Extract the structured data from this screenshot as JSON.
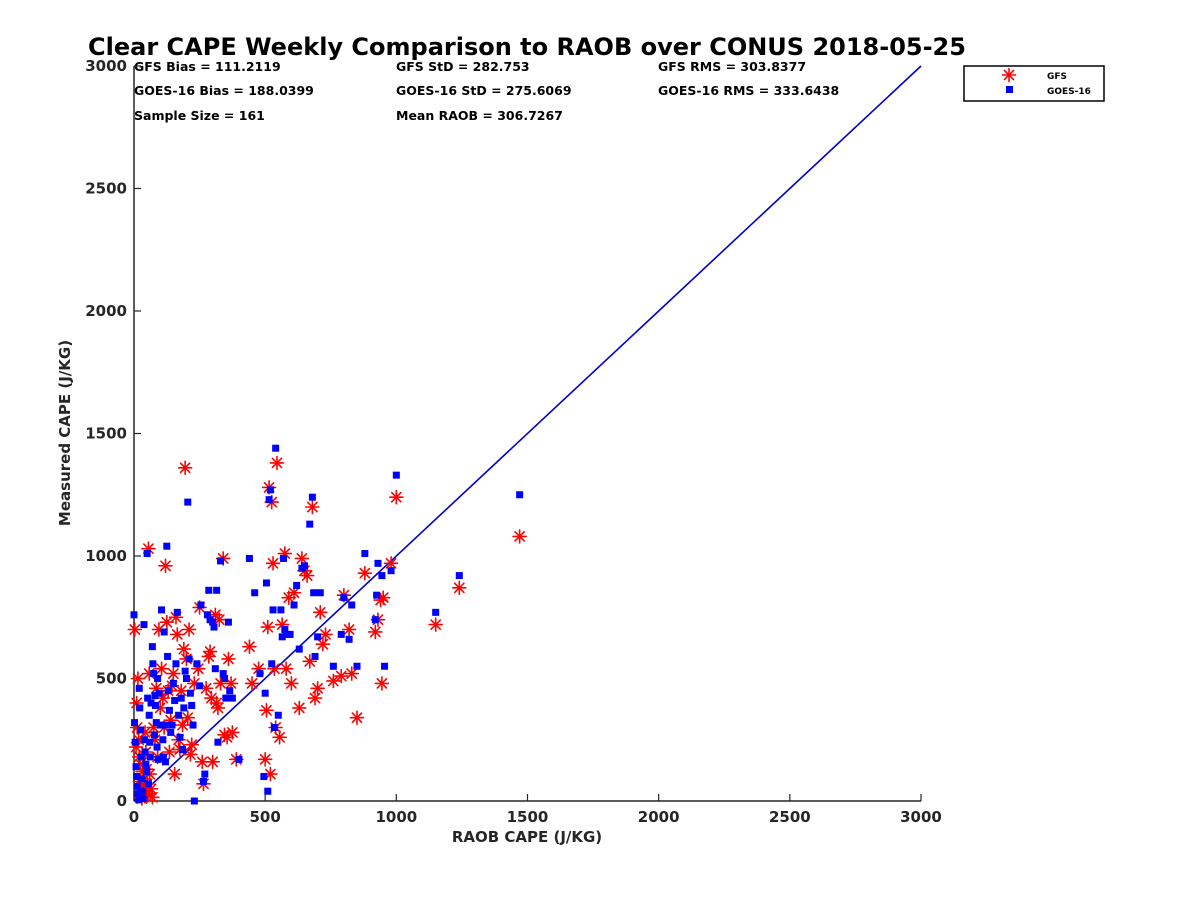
{
  "chart_data": {
    "type": "scatter",
    "title": "Clear CAPE Weekly Comparison to RAOB over CONUS 2018-05-25",
    "xlabel": "RAOB CAPE (J/KG)",
    "ylabel": "Measured CAPE (J/KG)",
    "xlim": [
      0,
      3000
    ],
    "ylim": [
      0,
      3000
    ],
    "xticks": [
      "0",
      "500",
      "1000",
      "1500",
      "2000",
      "2500",
      "3000"
    ],
    "yticks": [
      "0",
      "500",
      "1000",
      "1500",
      "2000",
      "2500",
      "3000"
    ],
    "grid": false,
    "legend_position": "top-right",
    "stats": {
      "gfs_bias": "GFS Bias = 111.2119",
      "gfs_std": "GFS StD = 282.753",
      "gfs_rms": "GFS RMS = 303.8377",
      "goes_bias": "GOES-16 Bias = 188.0399",
      "goes_std": "GOES-16 StD = 275.6069",
      "goes_rms": "GOES-16 RMS = 333.6438",
      "sample_size": "Sample Size = 161",
      "mean_raob": "Mean RAOB = 306.7267"
    },
    "reference_line": {
      "x": [
        0,
        3000
      ],
      "y": [
        0,
        3000
      ],
      "color": "#0000cc"
    },
    "series": [
      {
        "name": "GFS",
        "marker": "asterisk",
        "color": "#ff0000",
        "points": [
          [
            3,
            700
          ],
          [
            8,
            220
          ],
          [
            10,
            400
          ],
          [
            12,
            300
          ],
          [
            15,
            500
          ],
          [
            18,
            250
          ],
          [
            20,
            180
          ],
          [
            22,
            80
          ],
          [
            25,
            150
          ],
          [
            28,
            60
          ],
          [
            30,
            10
          ],
          [
            33,
            120
          ],
          [
            35,
            40
          ],
          [
            38,
            90
          ],
          [
            40,
            20
          ],
          [
            42,
            280
          ],
          [
            45,
            200
          ],
          [
            48,
            130
          ],
          [
            50,
            70
          ],
          [
            52,
            30
          ],
          [
            55,
            1030
          ],
          [
            58,
            520
          ],
          [
            60,
            110
          ],
          [
            65,
            50
          ],
          [
            70,
            15
          ],
          [
            75,
            300
          ],
          [
            80,
            250
          ],
          [
            85,
            460
          ],
          [
            90,
            180
          ],
          [
            95,
            700
          ],
          [
            100,
            380
          ],
          [
            105,
            540
          ],
          [
            110,
            420
          ],
          [
            115,
            300
          ],
          [
            120,
            960
          ],
          [
            125,
            730
          ],
          [
            130,
            450
          ],
          [
            135,
            200
          ],
          [
            140,
            330
          ],
          [
            145,
            470
          ],
          [
            150,
            520
          ],
          [
            155,
            110
          ],
          [
            160,
            750
          ],
          [
            165,
            680
          ],
          [
            170,
            250
          ],
          [
            175,
            210
          ],
          [
            180,
            450
          ],
          [
            185,
            310
          ],
          [
            190,
            620
          ],
          [
            195,
            1360
          ],
          [
            200,
            580
          ],
          [
            205,
            340
          ],
          [
            210,
            700
          ],
          [
            215,
            190
          ],
          [
            220,
            230
          ],
          [
            230,
            480
          ],
          [
            245,
            540
          ],
          [
            250,
            790
          ],
          [
            260,
            160
          ],
          [
            265,
            70
          ],
          [
            275,
            460
          ],
          [
            285,
            590
          ],
          [
            290,
            610
          ],
          [
            295,
            420
          ],
          [
            300,
            160
          ],
          [
            310,
            760
          ],
          [
            315,
            400
          ],
          [
            320,
            380
          ],
          [
            325,
            740
          ],
          [
            330,
            480
          ],
          [
            340,
            990
          ],
          [
            345,
            270
          ],
          [
            355,
            260
          ],
          [
            360,
            580
          ],
          [
            370,
            480
          ],
          [
            375,
            280
          ],
          [
            390,
            170
          ],
          [
            440,
            630
          ],
          [
            450,
            480
          ],
          [
            475,
            540
          ],
          [
            500,
            170
          ],
          [
            505,
            370
          ],
          [
            510,
            710
          ],
          [
            515,
            1280
          ],
          [
            520,
            110
          ],
          [
            525,
            1220
          ],
          [
            530,
            970
          ],
          [
            535,
            540
          ],
          [
            540,
            300
          ],
          [
            545,
            1380
          ],
          [
            555,
            260
          ],
          [
            565,
            720
          ],
          [
            575,
            1010
          ],
          [
            580,
            540
          ],
          [
            590,
            830
          ],
          [
            600,
            480
          ],
          [
            610,
            850
          ],
          [
            630,
            380
          ],
          [
            640,
            990
          ],
          [
            650,
            940
          ],
          [
            660,
            920
          ],
          [
            670,
            570
          ],
          [
            680,
            1200
          ],
          [
            690,
            420
          ],
          [
            700,
            460
          ],
          [
            710,
            770
          ],
          [
            720,
            640
          ],
          [
            730,
            680
          ],
          [
            760,
            490
          ],
          [
            790,
            510
          ],
          [
            800,
            840
          ],
          [
            820,
            700
          ],
          [
            830,
            520
          ],
          [
            850,
            340
          ],
          [
            880,
            930
          ],
          [
            920,
            690
          ],
          [
            930,
            740
          ],
          [
            940,
            820
          ],
          [
            945,
            480
          ],
          [
            950,
            830
          ],
          [
            980,
            970
          ],
          [
            1000,
            1240
          ],
          [
            1150,
            720
          ],
          [
            1240,
            870
          ],
          [
            1470,
            1080
          ]
        ]
      },
      {
        "name": "GOES-16",
        "marker": "square",
        "color": "#0000ff",
        "points": [
          [
            0,
            760
          ],
          [
            2,
            320
          ],
          [
            5,
            240
          ],
          [
            8,
            140
          ],
          [
            10,
            100
          ],
          [
            12,
            60
          ],
          [
            15,
            30
          ],
          [
            18,
            5
          ],
          [
            20,
            460
          ],
          [
            22,
            380
          ],
          [
            25,
            290
          ],
          [
            28,
            180
          ],
          [
            30,
            90
          ],
          [
            32,
            40
          ],
          [
            35,
            10
          ],
          [
            38,
            720
          ],
          [
            40,
            250
          ],
          [
            42,
            200
          ],
          [
            45,
            150
          ],
          [
            48,
            120
          ],
          [
            50,
            1010
          ],
          [
            52,
            420
          ],
          [
            55,
            70
          ],
          [
            58,
            350
          ],
          [
            60,
            240
          ],
          [
            62,
            180
          ],
          [
            65,
            400
          ],
          [
            70,
            630
          ],
          [
            72,
            560
          ],
          [
            75,
            520
          ],
          [
            78,
            270
          ],
          [
            80,
            430
          ],
          [
            82,
            390
          ],
          [
            85,
            320
          ],
          [
            88,
            220
          ],
          [
            90,
            500
          ],
          [
            92,
            170
          ],
          [
            95,
            440
          ],
          [
            100,
            310
          ],
          [
            105,
            780
          ],
          [
            110,
            250
          ],
          [
            112,
            180
          ],
          [
            115,
            690
          ],
          [
            118,
            310
          ],
          [
            120,
            160
          ],
          [
            125,
            1040
          ],
          [
            128,
            590
          ],
          [
            130,
            450
          ],
          [
            135,
            370
          ],
          [
            140,
            280
          ],
          [
            145,
            310
          ],
          [
            150,
            480
          ],
          [
            155,
            410
          ],
          [
            160,
            560
          ],
          [
            165,
            770
          ],
          [
            170,
            350
          ],
          [
            175,
            260
          ],
          [
            180,
            420
          ],
          [
            185,
            210
          ],
          [
            190,
            380
          ],
          [
            195,
            530
          ],
          [
            200,
            500
          ],
          [
            205,
            1220
          ],
          [
            210,
            580
          ],
          [
            215,
            440
          ],
          [
            220,
            390
          ],
          [
            225,
            310
          ],
          [
            230,
            0
          ],
          [
            240,
            560
          ],
          [
            250,
            470
          ],
          [
            255,
            800
          ],
          [
            265,
            80
          ],
          [
            270,
            110
          ],
          [
            280,
            760
          ],
          [
            285,
            860
          ],
          [
            290,
            740
          ],
          [
            300,
            730
          ],
          [
            305,
            710
          ],
          [
            310,
            540
          ],
          [
            315,
            860
          ],
          [
            320,
            240
          ],
          [
            330,
            980
          ],
          [
            340,
            520
          ],
          [
            345,
            500
          ],
          [
            350,
            420
          ],
          [
            360,
            730
          ],
          [
            365,
            450
          ],
          [
            375,
            420
          ],
          [
            400,
            170
          ],
          [
            440,
            990
          ],
          [
            460,
            850
          ],
          [
            480,
            520
          ],
          [
            495,
            100
          ],
          [
            500,
            440
          ],
          [
            505,
            890
          ],
          [
            510,
            40
          ],
          [
            515,
            1230
          ],
          [
            520,
            1270
          ],
          [
            525,
            560
          ],
          [
            530,
            780
          ],
          [
            535,
            300
          ],
          [
            540,
            1440
          ],
          [
            550,
            350
          ],
          [
            560,
            780
          ],
          [
            565,
            670
          ],
          [
            570,
            990
          ],
          [
            575,
            700
          ],
          [
            580,
            680
          ],
          [
            595,
            680
          ],
          [
            610,
            800
          ],
          [
            620,
            880
          ],
          [
            630,
            620
          ],
          [
            640,
            950
          ],
          [
            650,
            960
          ],
          [
            670,
            1130
          ],
          [
            680,
            1240
          ],
          [
            685,
            850
          ],
          [
            690,
            590
          ],
          [
            700,
            670
          ],
          [
            710,
            850
          ],
          [
            760,
            550
          ],
          [
            790,
            680
          ],
          [
            800,
            830
          ],
          [
            820,
            660
          ],
          [
            830,
            800
          ],
          [
            850,
            550
          ],
          [
            880,
            1010
          ],
          [
            920,
            740
          ],
          [
            925,
            840
          ],
          [
            930,
            970
          ],
          [
            945,
            920
          ],
          [
            955,
            550
          ],
          [
            980,
            940
          ],
          [
            1000,
            1330
          ],
          [
            1150,
            770
          ],
          [
            1240,
            920
          ],
          [
            1470,
            1250
          ]
        ]
      }
    ]
  }
}
